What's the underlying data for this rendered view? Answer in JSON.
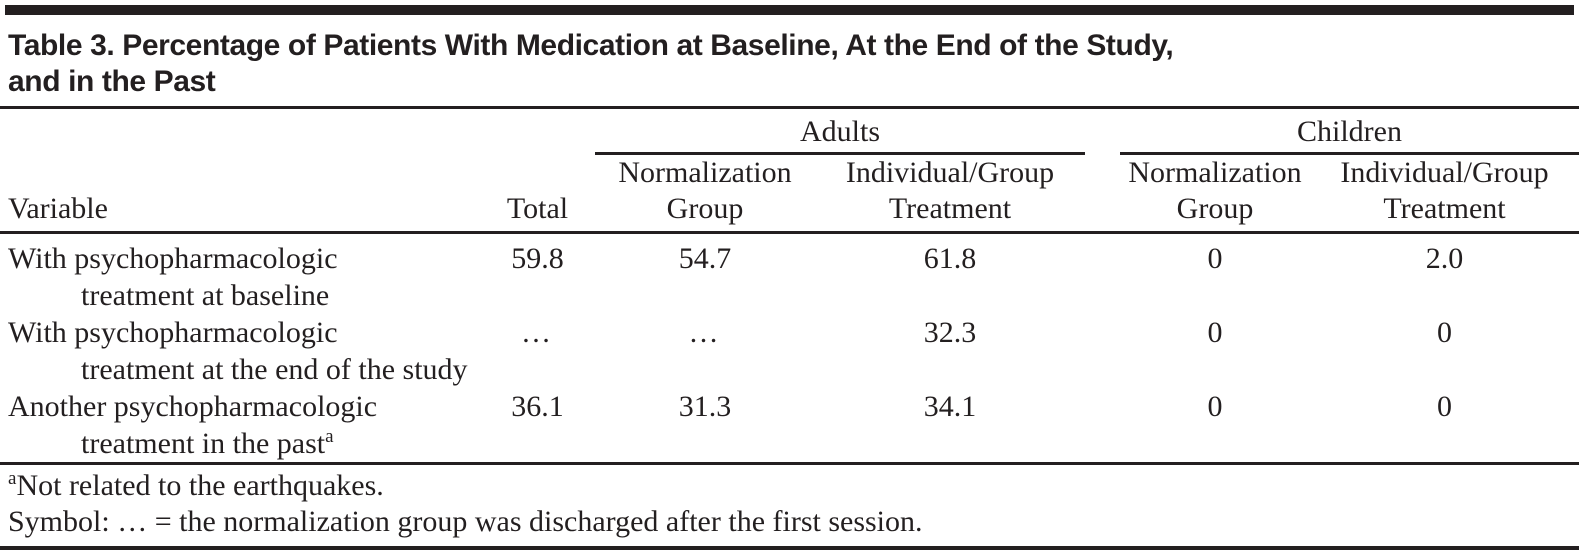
{
  "title": {
    "line1": "Table 3. Percentage of Patients With Medication at Baseline, At the End of the Study,",
    "line2": "and in the Past"
  },
  "header": {
    "variable": "Variable",
    "total": "Total",
    "groups": [
      {
        "label": "Adults",
        "subcolumns": [
          {
            "line1": "Normalization",
            "line2": "Group"
          },
          {
            "line1": "Individual/Group",
            "line2": "Treatment"
          }
        ]
      },
      {
        "label": "Children",
        "subcolumns": [
          {
            "line1": "Normalization",
            "line2": "Group"
          },
          {
            "line1": "Individual/Group",
            "line2": "Treatment"
          }
        ]
      }
    ]
  },
  "rows": [
    {
      "label_line1": "With psychopharmacologic",
      "label_line2": "treatment at baseline",
      "superscript": "",
      "total": "59.8",
      "adults_norm": "54.7",
      "adults_ind": "61.8",
      "children_norm": "0",
      "children_ind": "2.0"
    },
    {
      "label_line1": "With psychopharmacologic",
      "label_line2": "treatment at the end of the study",
      "superscript": "",
      "total": "…",
      "adults_norm": "…",
      "adults_ind": "32.3",
      "children_norm": "0",
      "children_ind": "0"
    },
    {
      "label_line1": "Another psychopharmacologic",
      "label_line2": "treatment in the past",
      "superscript": "a",
      "total": "36.1",
      "adults_norm": "31.3",
      "adults_ind": "34.1",
      "children_norm": "0",
      "children_ind": "0"
    }
  ],
  "footnotes": [
    {
      "marker": "a",
      "text": "Not related to the earthquakes."
    },
    {
      "marker": "",
      "text": "Symbol: … = the normalization group was discharged after the first session."
    }
  ],
  "chart_data": {
    "type": "table",
    "title": "Table 3. Percentage of Patients With Medication at Baseline, At the End of the Study, and in the Past",
    "columns": [
      "Variable",
      "Total",
      "Adults Normalization Group",
      "Adults Individual/Group Treatment",
      "Children Normalization Group",
      "Children Individual/Group Treatment"
    ],
    "rows": [
      [
        "With psychopharmacologic treatment at baseline",
        "59.8",
        "54.7",
        "61.8",
        "0",
        "2.0"
      ],
      [
        "With psychopharmacologic treatment at the end of the study",
        "…",
        "…",
        "32.3",
        "0",
        "0"
      ],
      [
        "Another psychopharmacologic treatment in the past (a)",
        "36.1",
        "31.3",
        "34.1",
        "0",
        "0"
      ]
    ]
  },
  "colors": {
    "text": "#231f20",
    "rule": "#231f20",
    "background": "#ffffff"
  }
}
